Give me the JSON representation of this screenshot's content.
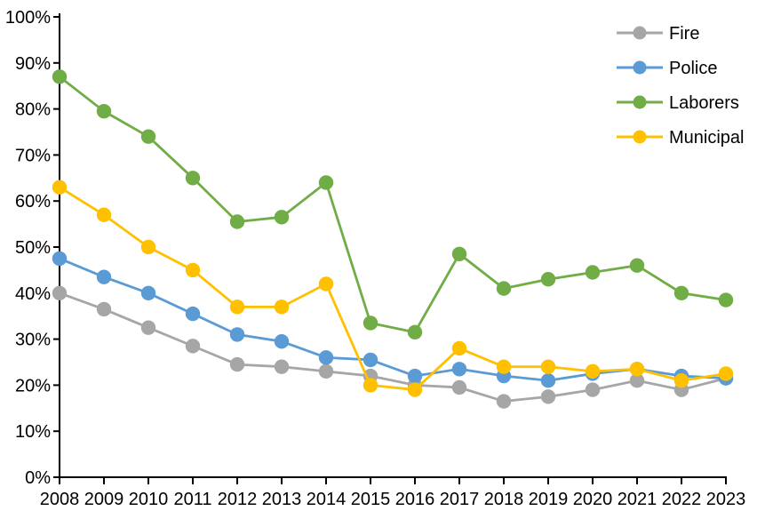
{
  "chart_data": {
    "type": "line",
    "categories": [
      2008,
      2009,
      2010,
      2011,
      2012,
      2013,
      2014,
      2015,
      2016,
      2017,
      2018,
      2019,
      2020,
      2021,
      2022,
      2023
    ],
    "series": [
      {
        "name": "Fire",
        "color": "#A6A6A6",
        "values": [
          40,
          36.5,
          32.5,
          28.5,
          24.5,
          24,
          23,
          22,
          20,
          19.5,
          16.5,
          17.5,
          19,
          21,
          19,
          21.5
        ]
      },
      {
        "name": "Police",
        "color": "#5B9BD5",
        "values": [
          47.5,
          43.5,
          40,
          35.5,
          31,
          29.5,
          26,
          25.5,
          22,
          23.5,
          22,
          21,
          22.5,
          23.5,
          22,
          21.5
        ]
      },
      {
        "name": "Laborers",
        "color": "#70AD47",
        "values": [
          87,
          79.5,
          74,
          65,
          55.5,
          56.5,
          64,
          33.5,
          31.5,
          48.5,
          41,
          43,
          44.5,
          46,
          40,
          38.5
        ]
      },
      {
        "name": "Municipal",
        "color": "#FFC000",
        "values": [
          63,
          57,
          50,
          45,
          37,
          37,
          42,
          20,
          19,
          28,
          24,
          24,
          23,
          23.5,
          21,
          22.5
        ]
      }
    ],
    "ylim": [
      0,
      100
    ],
    "y_tick_step": 10,
    "y_tick_suffix": "%",
    "y_tick_labels": [
      "0%",
      "10%",
      "20%",
      "30%",
      "40%",
      "50%",
      "60%",
      "70%",
      "80%",
      "90%",
      "100%"
    ],
    "x_tick_labels": [
      "2008",
      "2009",
      "2010",
      "2011",
      "2012",
      "2013",
      "2014",
      "2015",
      "2016",
      "2017",
      "2018",
      "2019",
      "2020",
      "2021",
      "2022",
      "2023"
    ],
    "legend": {
      "position": "top-right",
      "entries": [
        {
          "label": "Fire",
          "color": "#A6A6A6"
        },
        {
          "label": "Police",
          "color": "#5B9BD5"
        },
        {
          "label": "Laborers",
          "color": "#70AD47"
        },
        {
          "label": "Municipal",
          "color": "#FFC000"
        }
      ]
    },
    "grid": false,
    "axis_color": "#000000",
    "background_color": "#FFFFFF"
  }
}
